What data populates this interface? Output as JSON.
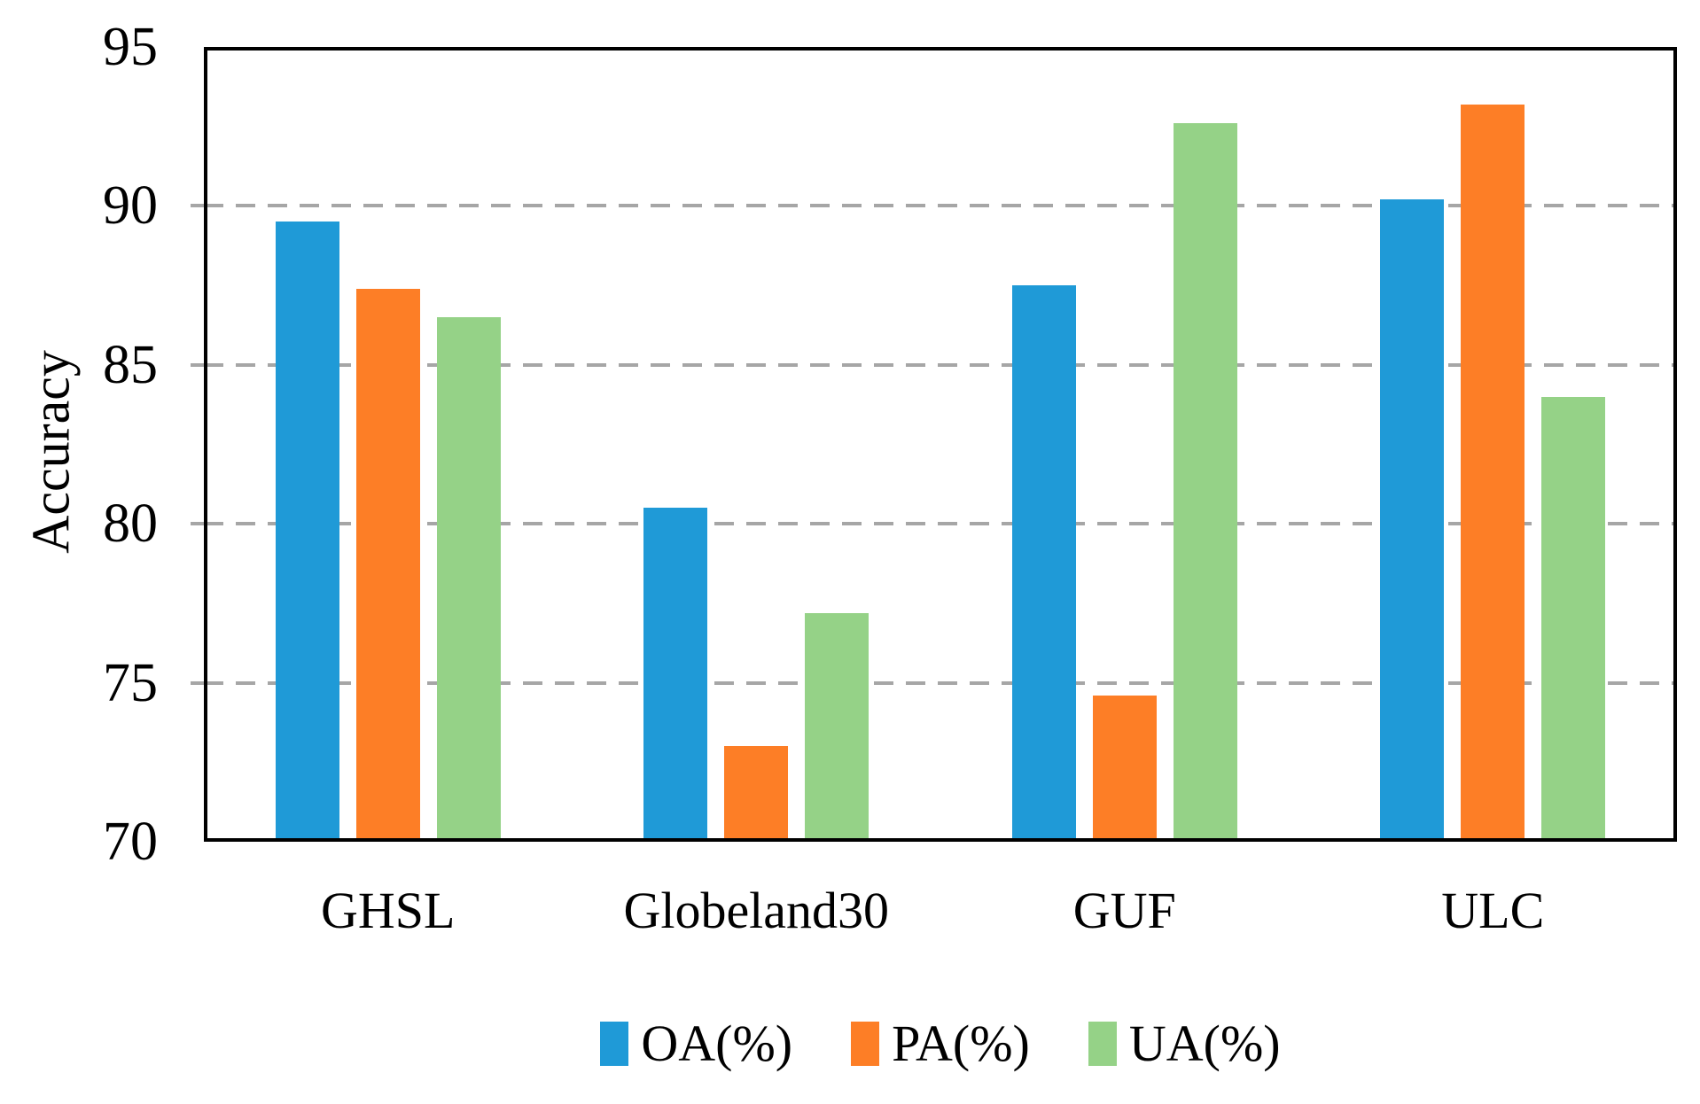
{
  "chart_data": {
    "type": "bar",
    "title": "",
    "categories": [
      "GHSL",
      "Globeland30",
      "GUF",
      "ULC"
    ],
    "series": [
      {
        "name": "OA(%)",
        "color": "#1F9AD7",
        "values": [
          89.5,
          80.5,
          87.5,
          90.2
        ]
      },
      {
        "name": "PA(%)",
        "color": "#FD7E26",
        "values": [
          87.4,
          73.0,
          74.6,
          93.2
        ]
      },
      {
        "name": "UA(%)",
        "color": "#95D287",
        "values": [
          86.5,
          77.2,
          92.6,
          84.0
        ]
      }
    ],
    "xlabel": "",
    "ylabel": "Accuracy",
    "ylim": [
      70,
      95
    ],
    "yticks": [
      70,
      75,
      80,
      85,
      90,
      95
    ],
    "grid": true,
    "gridline_color": "#A6A6A6",
    "axis_color": "#000000",
    "legend_position": "bottom"
  }
}
